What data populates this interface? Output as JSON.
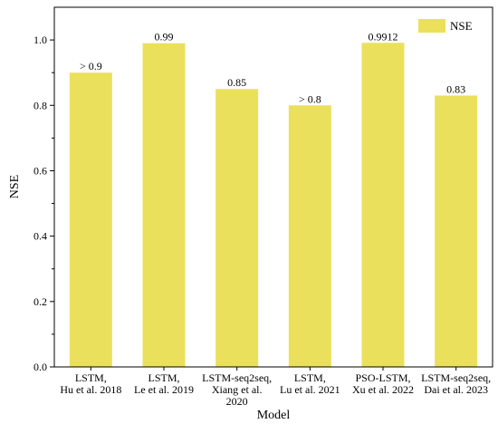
{
  "chart_data": {
    "type": "bar",
    "categories": [
      [
        "LSTM,",
        "Hu et al. 2018"
      ],
      [
        "LSTM,",
        "Le et al. 2019"
      ],
      [
        "LSTM-seq2seq,",
        "Xiang et al.",
        "2020"
      ],
      [
        "LSTM,",
        "Lu et al. 2021"
      ],
      [
        "PSO-LSTM,",
        "Xu et al. 2022"
      ],
      [
        "LSTM-seq2seq,",
        "Dai et al. 2023"
      ]
    ],
    "series": [
      {
        "name": "NSE",
        "values": [
          0.9,
          0.99,
          0.85,
          0.8,
          0.9912,
          0.83
        ],
        "labels": [
          "> 0.9",
          "0.99",
          "0.85",
          "> 0.8",
          "0.9912",
          "0.83"
        ],
        "color": "#ebe05b"
      }
    ],
    "xlabel": "Model",
    "ylabel": "NSE",
    "ylim": [
      0,
      1.1
    ],
    "yticks": [
      0.0,
      0.2,
      0.4,
      0.6,
      0.8,
      1.0
    ],
    "ytick_labels": [
      "0.0",
      "0.2",
      "0.4",
      "0.6",
      "0.8",
      "1.0"
    ],
    "grid": false,
    "legend": "top-right"
  }
}
